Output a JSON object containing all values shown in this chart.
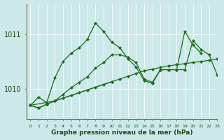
{
  "xlabel": "Graphe pression niveau de la mer (hPa)",
  "bg_color": "#cce8e8",
  "line_color": "#1a6e1a",
  "grid_color": "#b8d8d8",
  "ylim": [
    1009.45,
    1011.55
  ],
  "xlim": [
    -0.5,
    23
  ],
  "yticks": [
    1010,
    1011
  ],
  "xticks": [
    0,
    1,
    2,
    3,
    4,
    5,
    6,
    7,
    8,
    9,
    10,
    11,
    12,
    13,
    14,
    15,
    16,
    17,
    18,
    19,
    20,
    21,
    22,
    23
  ],
  "series": [
    {
      "x": [
        0,
        1,
        2,
        3,
        4,
        5,
        6,
        7,
        8,
        9,
        10,
        11,
        12,
        13,
        14,
        15,
        16,
        17,
        18,
        19,
        20,
        21
      ],
      "y": [
        1009.7,
        1009.85,
        1009.75,
        1010.2,
        1010.5,
        1010.65,
        1010.75,
        1010.9,
        1011.2,
        1011.05,
        1010.85,
        1010.75,
        1010.55,
        1010.4,
        1010.15,
        1010.1,
        1010.35,
        1010.35,
        1010.35,
        1011.05,
        1010.8,
        1010.65
      ]
    },
    {
      "x": [
        0,
        1,
        2,
        3,
        4,
        5,
        6,
        7,
        8,
        9,
        10,
        11,
        12,
        13,
        14,
        15,
        16,
        17,
        18,
        19,
        20,
        21,
        22,
        23
      ],
      "y": [
        1009.7,
        1009.65,
        1009.72,
        1009.78,
        1009.83,
        1009.88,
        1009.93,
        1009.98,
        1010.03,
        1010.08,
        1010.13,
        1010.18,
        1010.23,
        1010.28,
        1010.33,
        1010.36,
        1010.39,
        1010.42,
        1010.44,
        1010.46,
        1010.48,
        1010.5,
        1010.52,
        1010.55
      ]
    },
    {
      "x": [
        0,
        3,
        10
      ],
      "y": [
        1009.7,
        1009.78,
        1010.13
      ]
    },
    {
      "x": [
        0,
        1,
        2,
        3,
        4,
        5,
        6,
        7,
        8,
        9,
        10,
        11,
        12,
        13,
        14,
        15,
        16,
        17,
        18,
        19,
        20,
        21,
        22,
        23
      ],
      "y": [
        1009.7,
        1009.65,
        1009.72,
        1009.78,
        1009.9,
        1010.02,
        1010.12,
        1010.22,
        1010.38,
        1010.48,
        1010.62,
        1010.62,
        1010.58,
        1010.48,
        1010.18,
        1010.12,
        1010.35,
        1010.35,
        1010.35,
        1010.35,
        1010.88,
        1010.72,
        1010.62,
        1010.25
      ]
    }
  ]
}
